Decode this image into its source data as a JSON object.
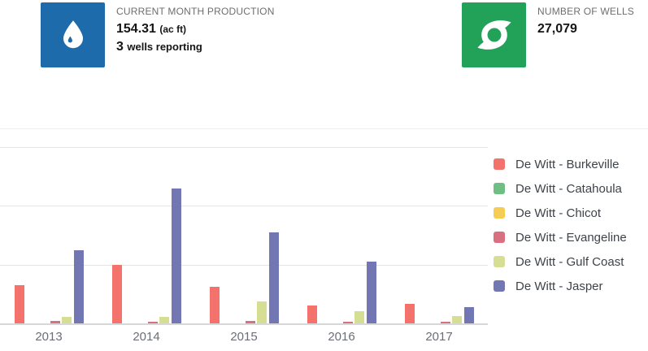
{
  "cards": [
    {
      "icon": "water-drop-icon",
      "icon_bg": "#1E6BAC",
      "label": "CURRENT MONTH PRODUCTION",
      "value": "154.31",
      "value_unit": "(ac ft)",
      "secondary_value": "3",
      "secondary_label": "wells reporting"
    },
    {
      "icon": "cyclone-icon",
      "icon_bg": "#22A258",
      "label": "NUMBER OF WELLS",
      "value": "27,079"
    }
  ],
  "chart_data": {
    "type": "bar",
    "categories": [
      "2013",
      "2014",
      "2015",
      "2016",
      "2017"
    ],
    "series": [
      {
        "name": "De Witt - Burkeville",
        "color": "#F3726C",
        "values": [
          65,
          100,
          62,
          30,
          33
        ]
      },
      {
        "name": "De Witt - Catahoula",
        "color": "#6FBE84",
        "values": [
          0,
          0,
          0,
          0,
          0
        ]
      },
      {
        "name": "De Witt - Chicot",
        "color": "#F5CD54",
        "values": [
          0,
          0,
          0,
          0,
          0
        ]
      },
      {
        "name": "De Witt - Evangeline",
        "color": "#D8707F",
        "values": [
          4,
          3,
          4,
          3,
          3
        ]
      },
      {
        "name": "De Witt - Gulf Coast",
        "color": "#D6DE93",
        "values": [
          11,
          11,
          37,
          21,
          12
        ]
      },
      {
        "name": "De Witt - Jasper",
        "color": "#7277B3",
        "values": [
          124,
          229,
          155,
          105,
          28
        ]
      }
    ],
    "title": "",
    "xlabel": "",
    "ylabel": "",
    "ylim": [
      0,
      316
    ],
    "gridline_values": [
      100,
      200,
      300
    ],
    "grid": true,
    "legend_position": "right",
    "y_axis_labels_visible": false
  }
}
